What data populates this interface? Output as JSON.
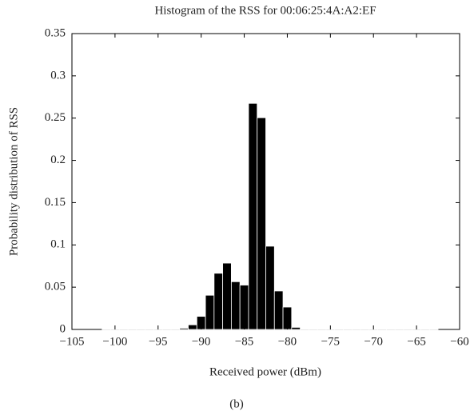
{
  "chart_data": {
    "type": "histogram",
    "title": "Histogram of the RSS for 00:06:25:4A:A2:EF",
    "xlabel": "Received power (dBm)",
    "ylabel": "Probability distribution of RSS",
    "bins": [
      -101.5,
      -100.5,
      -99.5,
      -98.5,
      -97.5,
      -96.5,
      -95.5,
      -94.5,
      -93.5,
      -92.5,
      -91.5,
      -90.5,
      -89.5,
      -88.5,
      -87.5,
      -86.5,
      -85.5,
      -84.5,
      -83.5,
      -82.5,
      -81.5,
      -80.5,
      -79.5,
      -78.5,
      -77.5,
      -76.5,
      -75.5,
      -74.5,
      -73.5,
      -72.5,
      -71.5,
      -70.5,
      -69.5,
      -68.5,
      -67.5,
      -66.5,
      -65.5,
      -64.5,
      -63.5,
      -62.5
    ],
    "values": [
      0,
      0,
      0,
      0,
      0,
      0,
      0,
      0,
      0,
      0.001,
      0.005,
      0.015,
      0.04,
      0.066,
      0.078,
      0.056,
      0.052,
      0.267,
      0.25,
      0.098,
      0.045,
      0.026,
      0.002,
      0,
      0,
      0,
      0,
      0,
      0,
      0,
      0,
      0,
      0,
      0,
      0,
      0,
      0,
      0,
      0
    ],
    "color": "#000000",
    "xlim": [
      -105,
      -60
    ],
    "xticks": [
      {
        "value": -105,
        "label": "−105"
      },
      {
        "value": -100,
        "label": "−100"
      },
      {
        "value": -95,
        "label": "−95"
      },
      {
        "value": -90,
        "label": "−90"
      },
      {
        "value": -85,
        "label": "−85"
      },
      {
        "value": -80,
        "label": "−80"
      },
      {
        "value": -75,
        "label": "−75"
      },
      {
        "value": -70,
        "label": "−70"
      },
      {
        "value": -65,
        "label": "−65"
      },
      {
        "value": -60,
        "label": "−60"
      }
    ],
    "ylim": [
      0,
      0.35
    ],
    "yticks": [
      0,
      0.05,
      0.1,
      0.15,
      0.2,
      0.25,
      0.3,
      0.35
    ],
    "grid": false
  },
  "caption": "(b)"
}
